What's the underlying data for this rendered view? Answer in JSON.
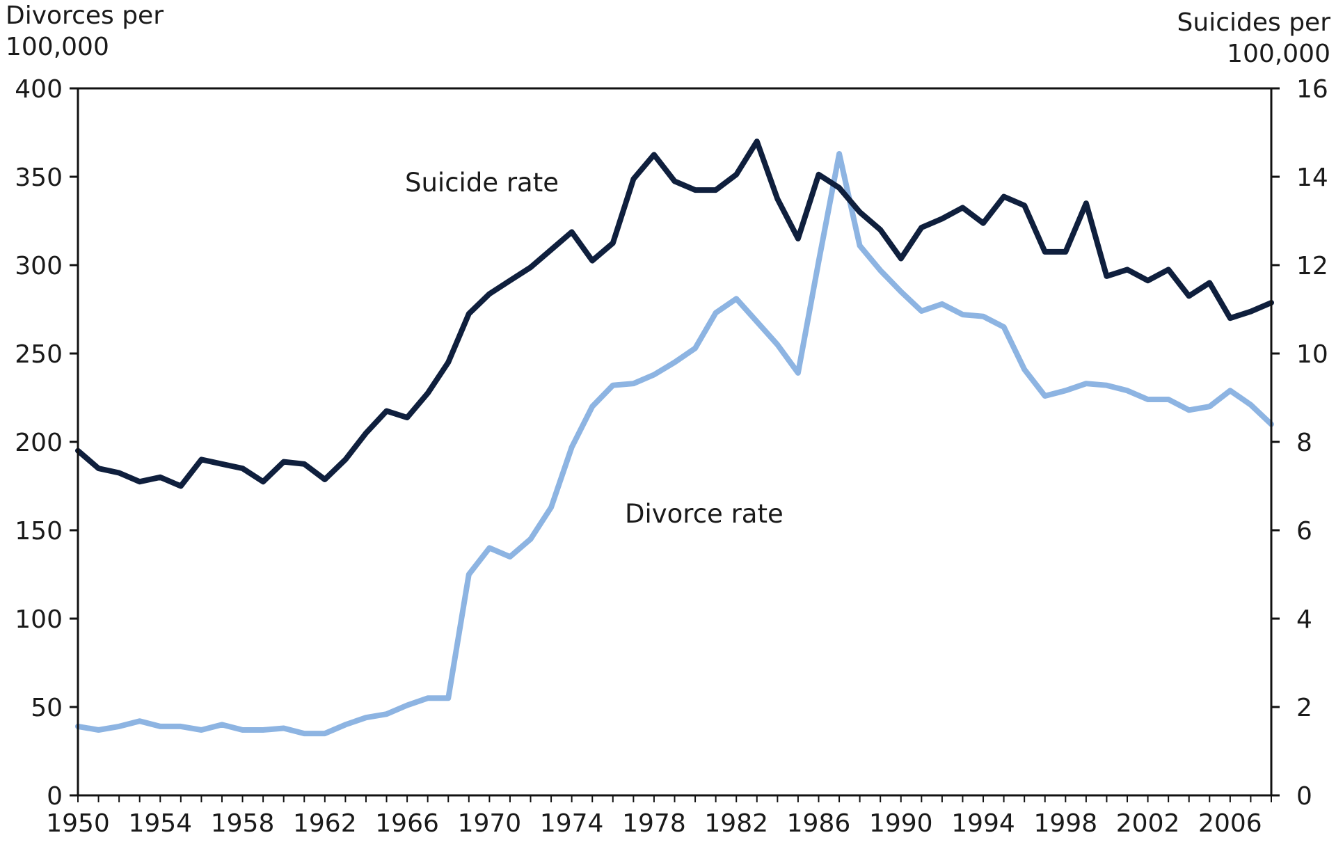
{
  "chart_data": {
    "type": "line",
    "left_axis_title_line1": "Divorces per",
    "left_axis_title_line2": "100,000",
    "right_axis_title_line1": "Suicides per",
    "right_axis_title_line2": "100,000",
    "left_ylim": [
      0,
      400
    ],
    "right_ylim": [
      0,
      16
    ],
    "xlim": [
      1950,
      2008
    ],
    "left_ticks": [
      "0",
      "50",
      "100",
      "150",
      "200",
      "250",
      "300",
      "350",
      "400"
    ],
    "right_ticks": [
      "0",
      "2",
      "4",
      "6",
      "8",
      "10",
      "12",
      "14",
      "16"
    ],
    "x_ticks": [
      "1950",
      "1954",
      "1958",
      "1962",
      "1966",
      "1970",
      "1974",
      "1978",
      "1982",
      "1986",
      "1990",
      "1994",
      "1998",
      "2002",
      "2006"
    ],
    "x": [
      1950,
      1951,
      1952,
      1953,
      1954,
      1955,
      1956,
      1957,
      1958,
      1959,
      1960,
      1961,
      1962,
      1963,
      1964,
      1965,
      1966,
      1967,
      1968,
      1969,
      1970,
      1971,
      1972,
      1973,
      1974,
      1975,
      1976,
      1977,
      1978,
      1979,
      1980,
      1981,
      1982,
      1983,
      1984,
      1985,
      1986,
      1987,
      1988,
      1989,
      1990,
      1991,
      1992,
      1993,
      1994,
      1995,
      1996,
      1997,
      1998,
      1999,
      2000,
      2001,
      2002,
      2003,
      2004,
      2005,
      2006,
      2007,
      2008
    ],
    "series": [
      {
        "name": "Suicide rate",
        "axis": "right",
        "color": "#0f1f3d",
        "values": [
          7.8,
          7.4,
          7.3,
          7.1,
          7.2,
          7.0,
          7.6,
          7.5,
          7.4,
          7.1,
          7.55,
          7.5,
          7.15,
          7.6,
          8.2,
          8.7,
          8.55,
          9.1,
          9.8,
          10.9,
          11.35,
          11.65,
          11.95,
          12.35,
          12.75,
          12.1,
          12.5,
          13.95,
          14.5,
          13.9,
          13.7,
          13.7,
          14.05,
          14.8,
          13.5,
          12.6,
          14.05,
          13.75,
          13.2,
          12.8,
          12.15,
          12.85,
          13.05,
          13.3,
          12.95,
          13.55,
          13.35,
          12.3,
          12.3,
          13.4,
          11.75,
          11.9,
          11.65,
          11.9,
          11.3,
          11.6,
          10.8,
          10.95,
          11.15
        ]
      },
      {
        "name": "Divorce rate",
        "axis": "left",
        "color": "#8db4e2",
        "values": [
          39,
          37,
          39,
          42,
          39,
          39,
          37,
          40,
          37,
          37,
          38,
          35,
          35,
          40,
          44,
          46,
          51,
          55,
          55,
          125,
          140,
          135,
          145,
          163,
          197,
          220,
          232,
          233,
          238,
          245,
          253,
          273,
          281,
          268,
          255,
          239,
          302,
          363,
          311,
          297,
          285,
          274,
          278,
          272,
          271,
          265,
          241,
          226,
          229,
          233,
          232,
          229,
          224,
          224,
          218,
          220,
          229,
          221,
          210
        ]
      }
    ]
  }
}
